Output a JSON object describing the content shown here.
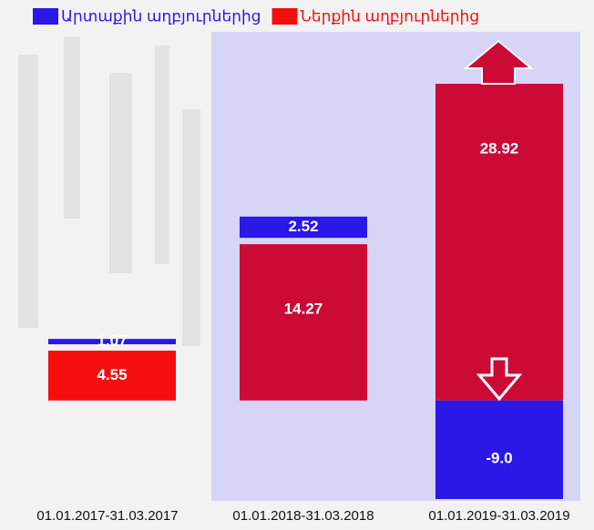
{
  "chart_data": {
    "type": "stacked_bar",
    "categories": [
      "01.01.2017-31.03.2017",
      "01.01.2018-31.03.2018",
      "01.01.2019-31.03.2019"
    ],
    "series": [
      {
        "name": "Ներքին աղբյուրներից",
        "color": "#f70d0d",
        "colors": [
          "#f70d0d",
          "#cc0a36",
          "#cc0a36"
        ],
        "values": [
          4.55,
          14.27,
          28.92
        ]
      },
      {
        "name": "Արտաքին աղբյուրներից",
        "color": "#2a17e8",
        "values": [
          1.07,
          2.52,
          -9.0
        ],
        "value_labels": [
          "1.07",
          "2.52",
          "-9.0"
        ]
      }
    ]
  }
}
